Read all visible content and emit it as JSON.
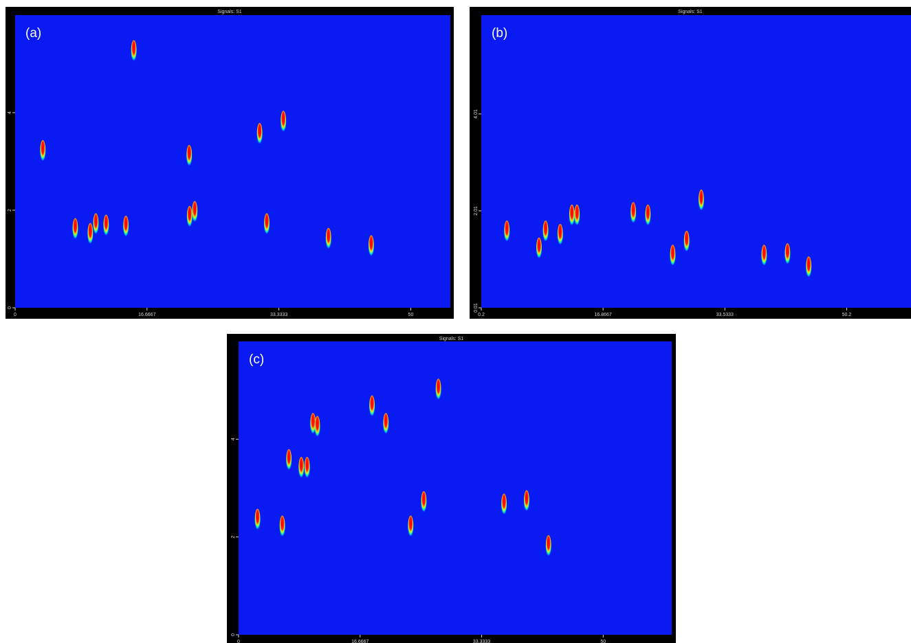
{
  "chart_data": [
    {
      "type": "contour",
      "title": "Signals: S1",
      "label": "(a)",
      "background": "#0a1af2",
      "xlim": [
        0,
        55
      ],
      "ylim": [
        0,
        6
      ],
      "xticks": [
        0,
        16.6667,
        33.3333,
        50
      ],
      "yticks": [
        0,
        2,
        4
      ],
      "x": [
        3.5,
        22,
        22.7,
        22.05,
        33.9,
        31.8,
        39.6,
        14,
        10.2,
        11.5,
        9.5,
        7.6,
        15,
        30.9,
        45
      ],
      "y": [
        3.1,
        3.0,
        1.85,
        1.75,
        3.7,
        1.6,
        1.3,
        1.55,
        1.6,
        1.57,
        1.4,
        1.5,
        5.15,
        3.45,
        1.15
      ]
    },
    {
      "type": "contour",
      "title": "Signals: S1",
      "label": "(b)",
      "background": "#0a1af2",
      "xlim": [
        0.2,
        59
      ],
      "ylim": [
        0.01,
        6.05
      ],
      "xticks": [
        0.2,
        16.8667,
        33.5333,
        50.2
      ],
      "yticks": [
        0.01,
        2.01,
        4.01
      ],
      "x": [
        8.1,
        3.7,
        30.3,
        23,
        21,
        12.6,
        13.3,
        28.3,
        42.1,
        38.9,
        26.4,
        11,
        9,
        45
      ],
      "y": [
        1.12,
        1.47,
        2.11,
        1.8,
        1.85,
        1.8,
        1.8,
        1.26,
        1.0,
        0.97,
        0.97,
        1.4,
        1.47,
        0.73
      ]
    },
    {
      "type": "contour",
      "title": "Signals: S1",
      "label": "(c)",
      "background": "#0a1af2",
      "xlim": [
        0,
        59.4
      ],
      "ylim": [
        0,
        6
      ],
      "xticks": [
        0,
        16.6667,
        33.3333,
        50
      ],
      "yticks": [
        0,
        2,
        4
      ],
      "x": [
        6,
        2.6,
        18.3,
        20.2,
        27.4,
        25.4,
        39.5,
        36.4,
        6.9,
        8.6,
        10.2,
        10.8,
        9.4,
        23.6,
        42.5
      ],
      "y": [
        2.1,
        2.24,
        4.56,
        4.2,
        4.9,
        2.6,
        2.62,
        2.55,
        3.46,
        3.3,
        4.2,
        4.14,
        3.3,
        2.1,
        1.7
      ]
    }
  ]
}
